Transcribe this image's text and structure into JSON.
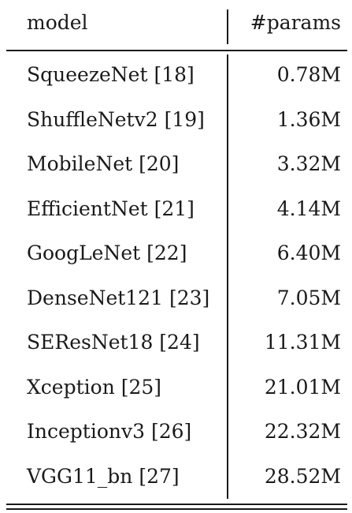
{
  "table": {
    "headers": {
      "model": "model",
      "params": "#params"
    },
    "rows": [
      {
        "model": "SqueezeNet [18]",
        "params": "0.78M"
      },
      {
        "model": "ShuffleNetv2 [19]",
        "params": "1.36M"
      },
      {
        "model": "MobileNet [20]",
        "params": "3.32M"
      },
      {
        "model": "EfficientNet [21]",
        "params": "4.14M"
      },
      {
        "model": "GoogLeNet [22]",
        "params": "6.40M"
      },
      {
        "model": "DenseNet121 [23]",
        "params": "7.05M"
      },
      {
        "model": "SEResNet18 [24]",
        "params": "11.31M"
      },
      {
        "model": "Xception [25]",
        "params": "21.01M"
      },
      {
        "model": "Inceptionv3 [26]",
        "params": "22.32M"
      },
      {
        "model": "VGG11_bn [27]",
        "params": "28.52M"
      }
    ]
  }
}
